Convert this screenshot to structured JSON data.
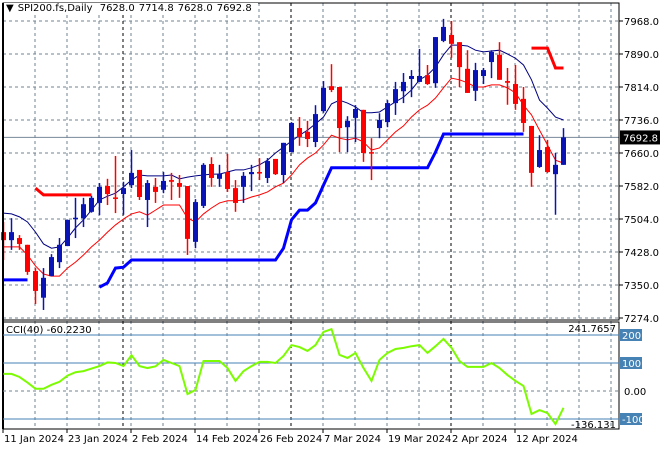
{
  "header": {
    "symbol": "SPI200.fs,Daily",
    "open": "7628.0",
    "high": "7714.8",
    "low": "7628.0",
    "close": "7692.8",
    "menu_icon": "triangle-down-icon"
  },
  "current_price_label": "7692.8",
  "colors": {
    "bull": "#0A14B4",
    "bear": "#FF0000",
    "ma_fast": "#000080",
    "ma_slow": "#FF0000",
    "support": "#0000FF",
    "resistance": "#FF0000",
    "cci": "#7CFC00",
    "cci_levels": "#4682B4",
    "grid": "#708090",
    "price_line": "#778899"
  },
  "cci": {
    "title": "CCI(40) -60.2230",
    "scale_max_label": "241.7657",
    "scale_min_label": "-136.131",
    "level_labels": [
      "200",
      "100",
      "0.00",
      "-100"
    ]
  },
  "chart_data": {
    "type": "candlestick",
    "title": "SPI200.fs,Daily",
    "ylim": [
      7274,
      7968
    ],
    "y_ticks": [
      "7968.0",
      "7890.0",
      "7814.0",
      "7736.0",
      "7660.0",
      "7582.0",
      "7504.0",
      "7428.0",
      "7350.0",
      "7274.0"
    ],
    "x_tick_labels": [
      "11 Jan 2024",
      "23 Jan 2024",
      "2 Feb 2024",
      "14 Feb 2024",
      "26 Feb 2024",
      "7 Mar 2024",
      "19 Mar 2024",
      "2 Apr 2024",
      "12 Apr 2024"
    ],
    "x_tick_bar_index": [
      0,
      8,
      16,
      24,
      32,
      40,
      48,
      56,
      64
    ],
    "ohlc": [
      [
        7469,
        7493,
        7403,
        7450
      ],
      [
        7450,
        7502,
        7427,
        7469
      ],
      [
        7455,
        7462,
        7427,
        7441
      ],
      [
        7439,
        7439,
        7368,
        7375
      ],
      [
        7377,
        7384,
        7299,
        7330
      ],
      [
        7314,
        7384,
        7285,
        7361
      ],
      [
        7365,
        7417,
        7365,
        7410
      ],
      [
        7398,
        7455,
        7384,
        7439
      ],
      [
        7436,
        7498,
        7436,
        7498
      ],
      [
        7500,
        7550,
        7455,
        7503
      ],
      [
        7502,
        7550,
        7481,
        7535
      ],
      [
        7517,
        7555,
        7515,
        7550
      ],
      [
        7538,
        7585,
        7509,
        7576
      ],
      [
        7578,
        7595,
        7533,
        7559
      ],
      [
        7551,
        7649,
        7514,
        7548
      ],
      [
        7559,
        7588,
        7510,
        7573
      ],
      [
        7580,
        7663,
        7573,
        7609
      ],
      [
        7616,
        7616,
        7545,
        7552
      ],
      [
        7545,
        7592,
        7481,
        7585
      ],
      [
        7576,
        7597,
        7538,
        7564
      ],
      [
        7569,
        7611,
        7561,
        7590
      ],
      [
        7592,
        7609,
        7545,
        7588
      ],
      [
        7585,
        7604,
        7550,
        7576
      ],
      [
        7578,
        7578,
        7415,
        7453
      ],
      [
        7446,
        7547,
        7431,
        7540
      ],
      [
        7531,
        7632,
        7526,
        7628
      ],
      [
        7630,
        7646,
        7576,
        7597
      ],
      [
        7595,
        7628,
        7576,
        7607
      ],
      [
        7611,
        7654,
        7564,
        7571
      ],
      [
        7573,
        7592,
        7517,
        7538
      ],
      [
        7576,
        7611,
        7538,
        7602
      ],
      [
        7606,
        7628,
        7566,
        7611
      ],
      [
        7611,
        7644,
        7592,
        7609
      ],
      [
        7597,
        7644,
        7585,
        7637
      ],
      [
        7642,
        7642,
        7604,
        7606
      ],
      [
        7604,
        7680,
        7585,
        7680
      ],
      [
        7658,
        7729,
        7658,
        7727
      ],
      [
        7715,
        7741,
        7673,
        7694
      ],
      [
        7706,
        7732,
        7670,
        7689
      ],
      [
        7682,
        7769,
        7670,
        7748
      ],
      [
        7755,
        7826,
        7751,
        7810
      ],
      [
        7814,
        7866,
        7800,
        7805
      ],
      [
        7812,
        7812,
        7658,
        7715
      ],
      [
        7717,
        7743,
        7658,
        7732
      ],
      [
        7739,
        7769,
        7682,
        7760
      ],
      [
        7758,
        7758,
        7635,
        7656
      ],
      [
        7658,
        7691,
        7592,
        7655
      ],
      [
        7715,
        7750,
        7691,
        7734
      ],
      [
        7729,
        7781,
        7717,
        7774
      ],
      [
        7774,
        7824,
        7746,
        7807
      ],
      [
        7802,
        7845,
        7774,
        7824
      ],
      [
        7831,
        7852,
        7788,
        7838
      ],
      [
        7824,
        7902,
        7824,
        7838
      ],
      [
        7840,
        7864,
        7817,
        7819
      ],
      [
        7821,
        7930,
        7810,
        7930
      ],
      [
        7921,
        7973,
        7918,
        7954
      ],
      [
        7935,
        7968,
        7881,
        7914
      ],
      [
        7918,
        7918,
        7812,
        7859
      ],
      [
        7855,
        7899,
        7798,
        7798
      ],
      [
        7803,
        7869,
        7779,
        7852
      ],
      [
        7838,
        7857,
        7819,
        7852
      ],
      [
        7871,
        7899,
        7833,
        7895
      ],
      [
        7888,
        7918,
        7829,
        7829
      ],
      [
        7826,
        7857,
        7770,
        7822
      ],
      [
        7819,
        7864,
        7758,
        7772
      ],
      [
        7784,
        7812,
        7706,
        7727
      ],
      [
        7720,
        7720,
        7576,
        7609
      ],
      [
        7623,
        7698,
        7621,
        7663
      ],
      [
        7670,
        7687,
        7609,
        7611
      ],
      [
        7606,
        7656,
        7510,
        7628
      ],
      [
        7628,
        7714.8,
        7628,
        7692.8
      ]
    ],
    "ma_fast": [
      7514,
      7512,
      7505,
      7493,
      7469,
      7441,
      7431,
      7434,
      7455,
      7479,
      7498,
      7521,
      7545,
      7554,
      7561,
      7576,
      7592,
      7604,
      7602,
      7602,
      7602,
      7604,
      7595,
      7599,
      7602,
      7604,
      7606,
      7606,
      7611,
      7616,
      7616,
      7621,
      7628,
      7639,
      7656,
      7670,
      7684,
      7698,
      7710,
      7725,
      7741,
      7772,
      7781,
      7774,
      7765,
      7751,
      7751,
      7753,
      7765,
      7777,
      7788,
      7805,
      7829,
      7840,
      7859,
      7888,
      7911,
      7911,
      7909,
      7899,
      7895,
      7897,
      7899,
      7890,
      7880,
      7864,
      7829,
      7781,
      7762,
      7741,
      7734
    ],
    "ma_slow": [
      7434,
      7434,
      7434,
      7415,
      7389,
      7370,
      7365,
      7365,
      7384,
      7398,
      7415,
      7434,
      7450,
      7469,
      7486,
      7500,
      7512,
      7517,
      7509,
      7521,
      7533,
      7533,
      7533,
      7502,
      7493,
      7512,
      7526,
      7538,
      7543,
      7543,
      7545,
      7552,
      7557,
      7564,
      7576,
      7585,
      7604,
      7628,
      7644,
      7656,
      7675,
      7698,
      7691,
      7687,
      7691,
      7682,
      7663,
      7668,
      7687,
      7706,
      7720,
      7741,
      7758,
      7769,
      7786,
      7810,
      7833,
      7829,
      7822,
      7812,
      7812,
      7817,
      7817,
      7810,
      7798,
      7769,
      7746,
      7710,
      7675,
      7639,
      7632
    ],
    "support_line": [
      7356,
      7356,
      7356,
      7356,
      null,
      null,
      null,
      null,
      null,
      null,
      null,
      null,
      7339,
      7349,
      7384,
      7386,
      7403,
      7403,
      7403,
      7403,
      7403,
      7403,
      7403,
      7403,
      7403,
      7403,
      7403,
      7403,
      7403,
      7403,
      7403,
      7403,
      7403,
      7403,
      7403,
      7431,
      7498,
      7521,
      7521,
      7538,
      7580,
      7621,
      7621,
      7621,
      7621,
      7621,
      7621,
      7621,
      7621,
      7621,
      7621,
      7621,
      7621,
      7621,
      7658,
      7701,
      7701,
      7701,
      7701,
      7701,
      7701,
      7701,
      7701,
      7701,
      7701,
      7701,
      null,
      null,
      null,
      null,
      null
    ],
    "resistance_line": [
      null,
      null,
      null,
      null,
      7573,
      7557,
      7557,
      7557,
      7557,
      7557,
      7557,
      7557,
      null,
      null,
      null,
      null,
      null,
      null,
      null,
      null,
      null,
      null,
      null,
      null,
      null,
      null,
      null,
      null,
      null,
      null,
      null,
      null,
      null,
      null,
      null,
      null,
      null,
      null,
      null,
      null,
      null,
      null,
      null,
      null,
      null,
      null,
      null,
      null,
      null,
      null,
      null,
      null,
      null,
      null,
      null,
      null,
      null,
      null,
      null,
      null,
      null,
      null,
      null,
      null,
      null,
      null,
      7904,
      7904,
      7904,
      7857,
      7857
    ],
    "cci_values": [
      61,
      61,
      50,
      30,
      8,
      8,
      22,
      33,
      55,
      67,
      71,
      80,
      89,
      102,
      100,
      89,
      128,
      89,
      82,
      88,
      111,
      100,
      89,
      -11,
      4,
      107,
      107,
      107,
      82,
      36,
      71,
      89,
      104,
      104,
      100,
      125,
      164,
      157,
      143,
      164,
      211,
      221,
      129,
      118,
      136,
      82,
      36,
      111,
      136,
      150,
      154,
      160,
      164,
      136,
      160,
      186,
      154,
      107,
      86,
      86,
      86,
      100,
      82,
      57,
      36,
      18,
      -82,
      -68,
      -79,
      -118,
      -60.223
    ],
    "cci_ylim": [
      -136.131,
      241.7657
    ],
    "cci_levels": [
      200,
      100,
      0,
      -100
    ]
  }
}
